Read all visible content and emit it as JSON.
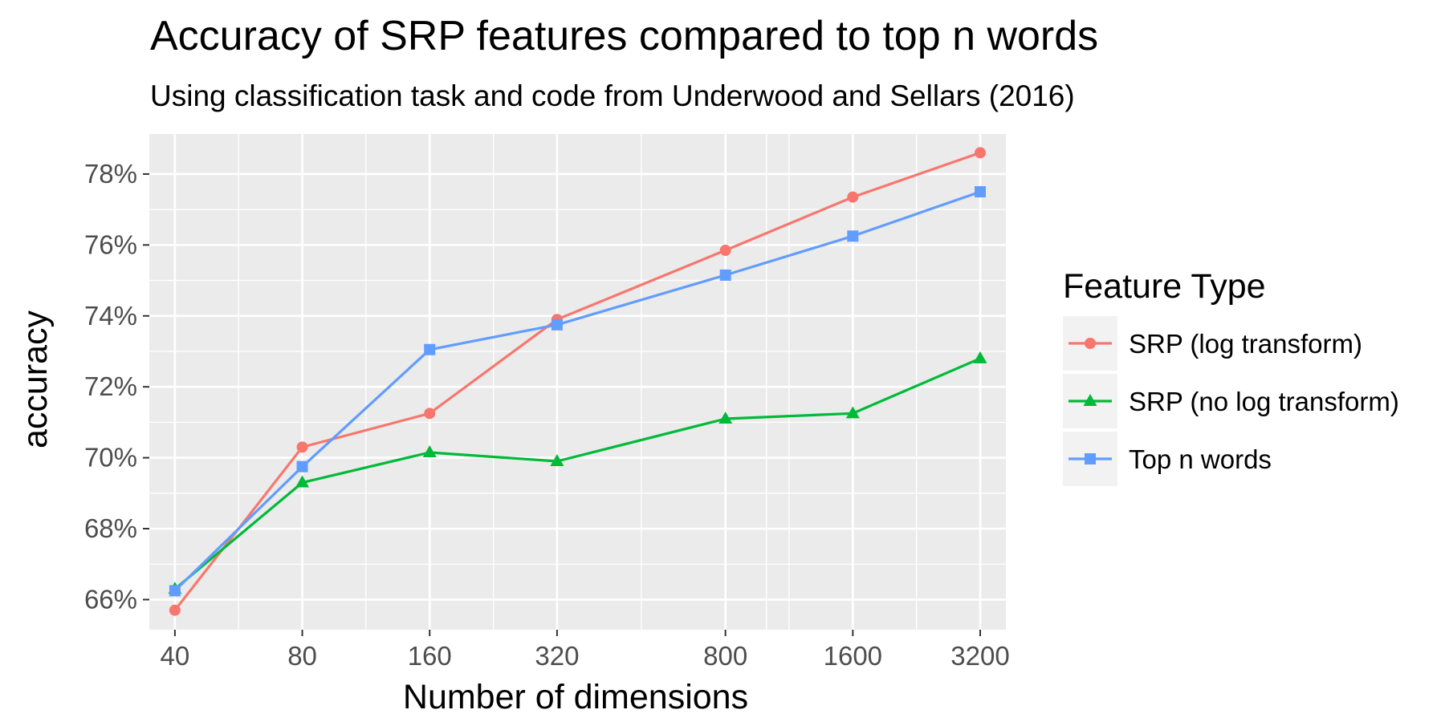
{
  "chart_data": {
    "type": "line",
    "title": "Accuracy of SRP features compared to top n words",
    "subtitle": "Using classification task and code from Underwood and Sellars (2016)",
    "xlabel": "Number of dimensions",
    "ylabel": "accuracy",
    "x_scale": "log",
    "x": [
      40,
      80,
      160,
      320,
      800,
      1600,
      3200
    ],
    "x_tick_labels": [
      "40",
      "80",
      "160",
      "320",
      "800",
      "1600",
      "3200"
    ],
    "x_minor_breaks": [
      56.57,
      113.1,
      226.3,
      505.96,
      1000,
      1131.4,
      2262.7
    ],
    "xlim": [
      34.8,
      3680
    ],
    "y_ticks": [
      0.66,
      0.68,
      0.7,
      0.72,
      0.74,
      0.76,
      0.78
    ],
    "y_tick_labels": [
      "66%",
      "68%",
      "70%",
      "72%",
      "74%",
      "76%",
      "78%"
    ],
    "ylim": [
      0.6515,
      0.7913
    ],
    "grid": true,
    "panel_background": "#ebebeb",
    "legend": {
      "title": "Feature Type",
      "position": "right"
    },
    "series": [
      {
        "name": "SRP (log transform)",
        "color": "#f8766d",
        "marker": "circle",
        "values": [
          0.657,
          0.703,
          0.7125,
          0.739,
          0.7585,
          0.7735,
          0.786
        ]
      },
      {
        "name": "SRP (no log transform)",
        "color": "#00ba38",
        "marker": "triangle",
        "values": [
          0.663,
          0.693,
          0.7015,
          0.699,
          0.711,
          0.7125,
          0.728
        ]
      },
      {
        "name": "Top n words",
        "color": "#619cff",
        "marker": "square",
        "values": [
          0.6625,
          0.6975,
          0.7305,
          0.7375,
          0.7515,
          0.7625,
          0.775
        ]
      }
    ]
  }
}
